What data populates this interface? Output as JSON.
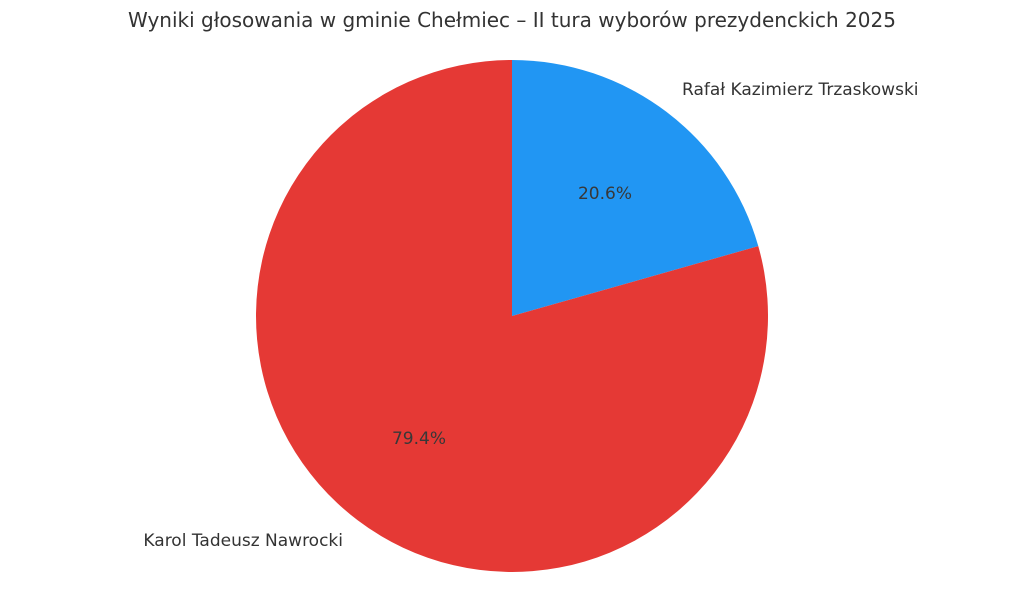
{
  "chart_data": {
    "type": "pie",
    "title": "Wyniki głosowania w gminie Chełmiec – II tura wyborów prezydenckich 2025",
    "slices": [
      {
        "label": "Rafał Kazimierz Trzaskowski",
        "value_pct": 20.6,
        "pct_label": "20.6%",
        "color": "#2196F3"
      },
      {
        "label": "Karol Tadeusz Nawrocki",
        "value_pct": 79.4,
        "pct_label": "79.4%",
        "color": "#E53935"
      }
    ],
    "start_angle": "top",
    "direction": "clockwise",
    "legend_position": "none",
    "background_color": "#ffffff",
    "text_color": "#333333"
  }
}
